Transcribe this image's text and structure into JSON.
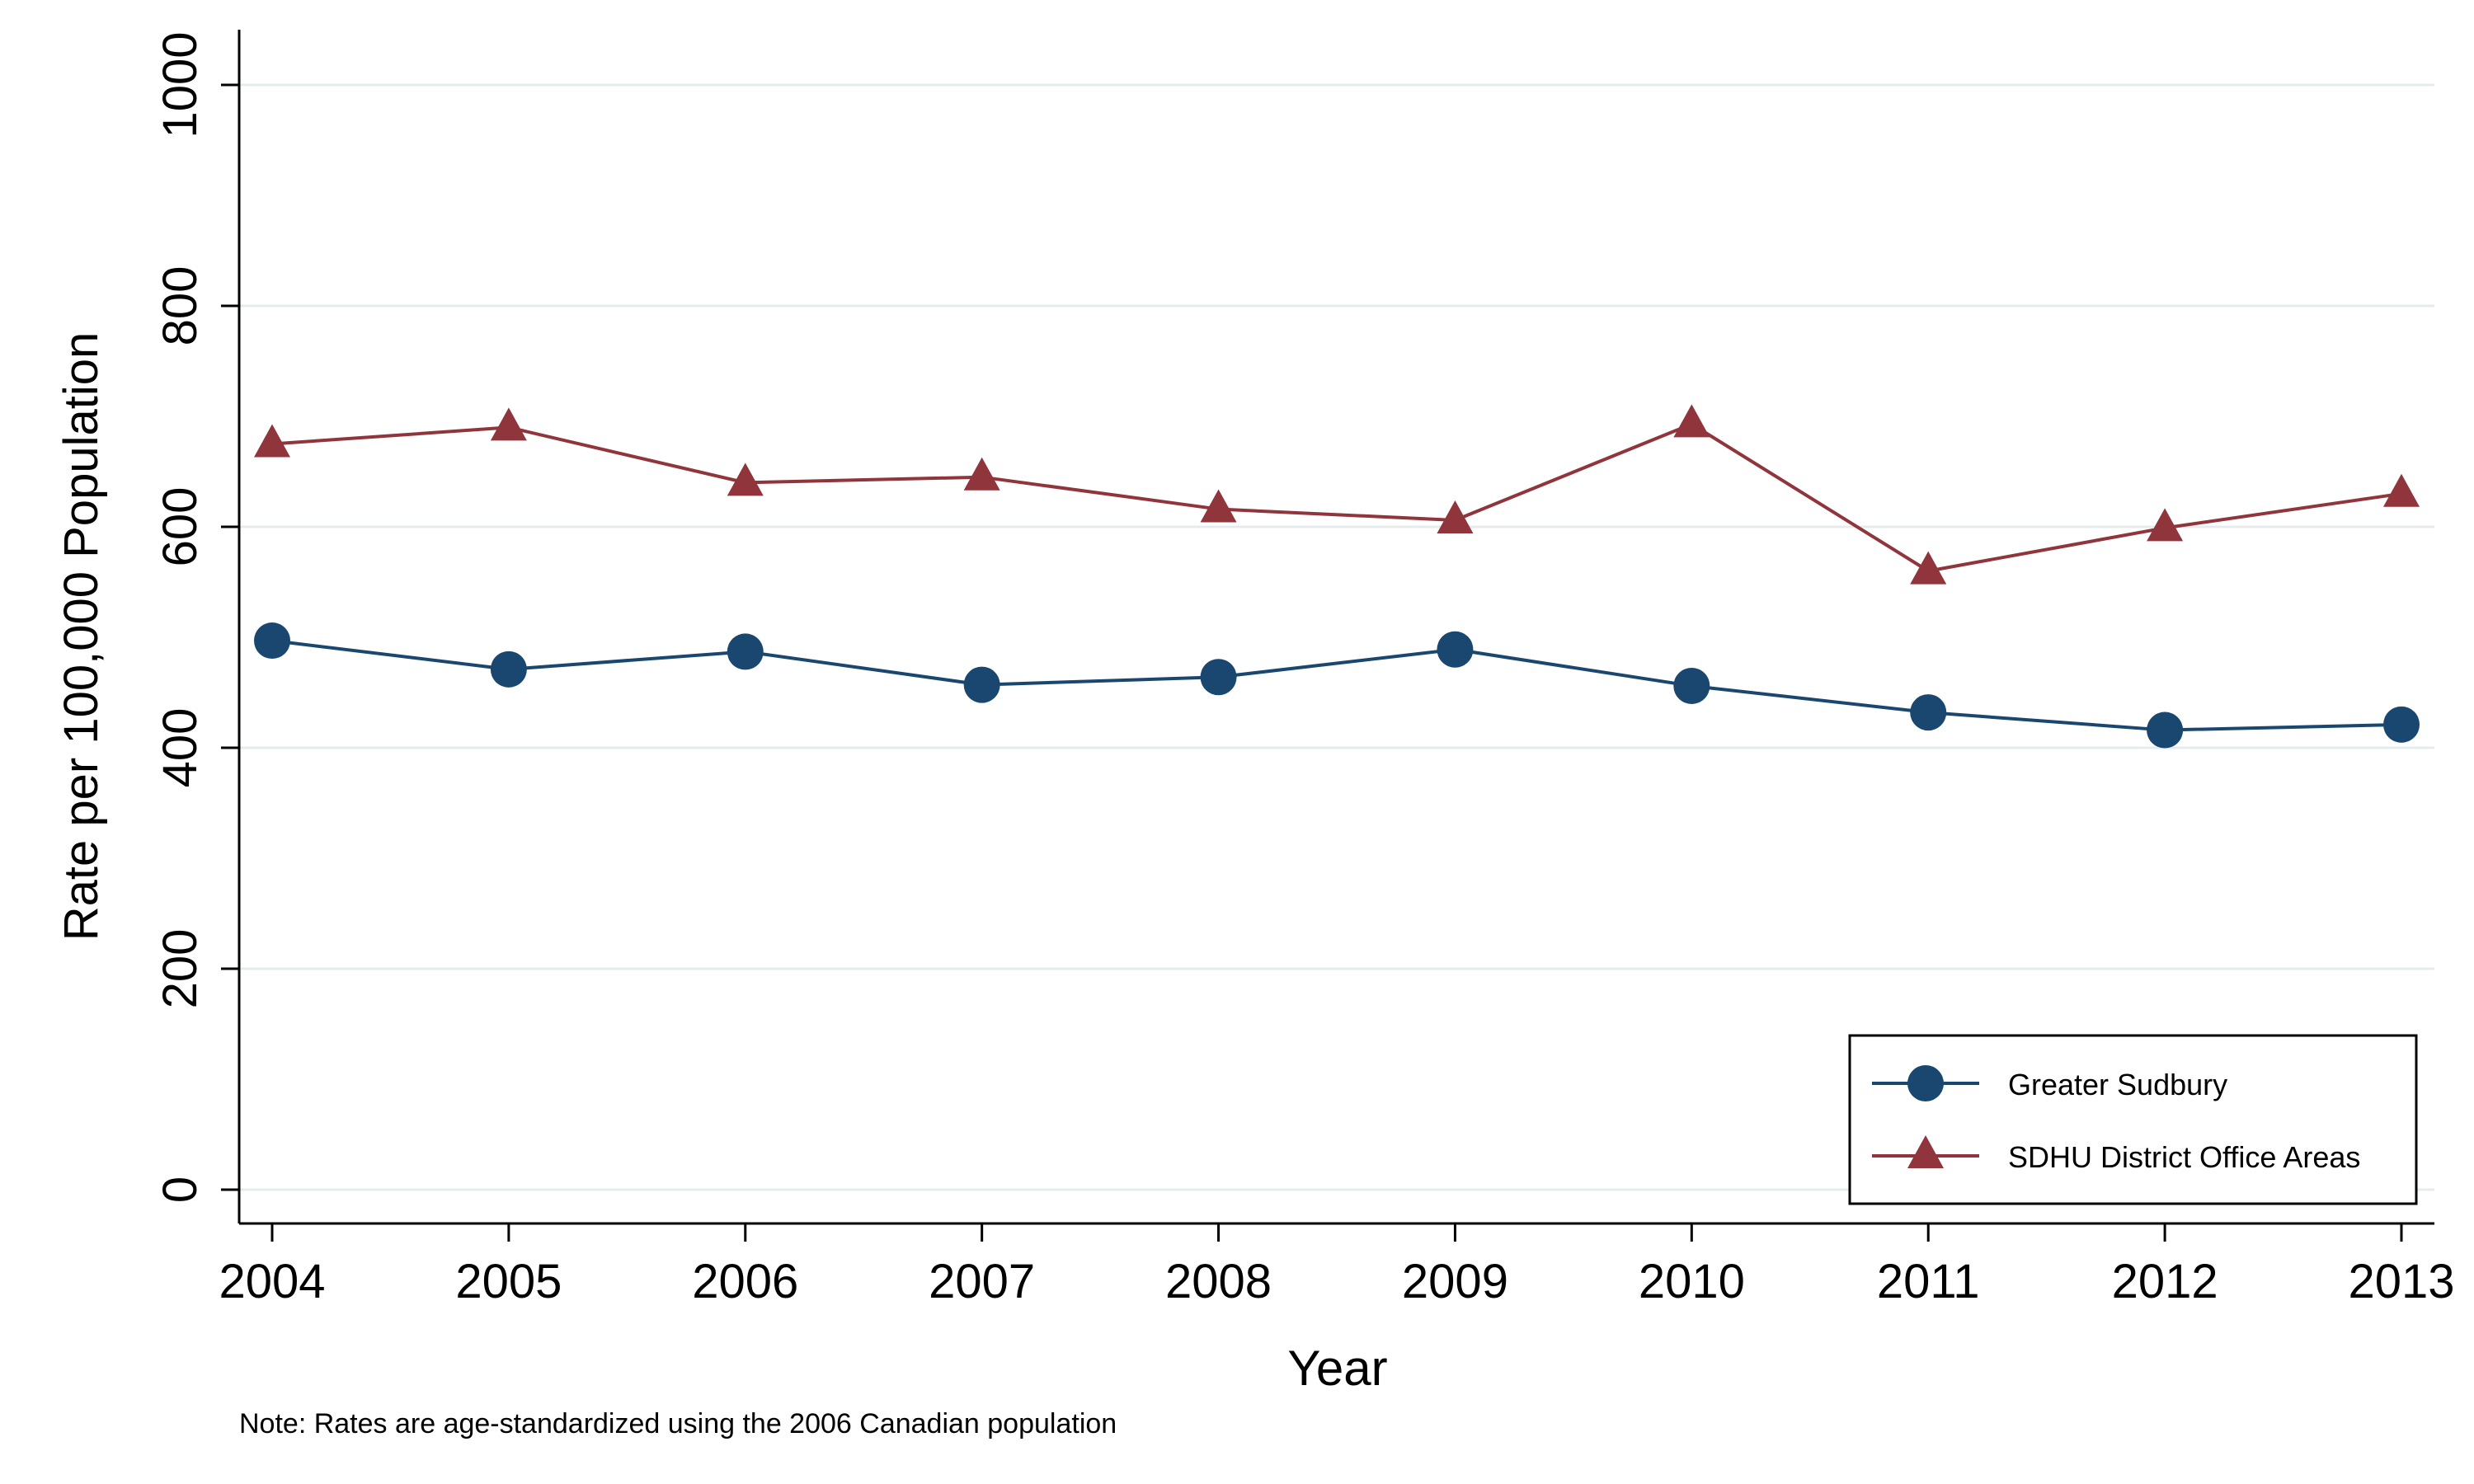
{
  "chart_data": {
    "type": "line",
    "title": "",
    "xlabel": "Year",
    "ylabel": "Rate per 100,000 Population",
    "note": "Note: Rates are age-standardized using the 2006 Canadian population",
    "x": [
      2004,
      2005,
      2006,
      2007,
      2008,
      2009,
      2010,
      2011,
      2012,
      2013
    ],
    "xticks": [
      "2004",
      "2005",
      "2006",
      "2007",
      "2008",
      "2009",
      "2010",
      "2011",
      "2012",
      "2013"
    ],
    "ylim": [
      0,
      1000
    ],
    "yticks": [
      "0",
      "200",
      "400",
      "600",
      "800",
      "1000"
    ],
    "grid": "horizontal",
    "legend_position": "bottom-right",
    "series": [
      {
        "name": "Greater Sudbury",
        "marker": "circle",
        "color": "#1a476f",
        "values": [
          497,
          471,
          487,
          457,
          464,
          489,
          456,
          432,
          416,
          421
        ]
      },
      {
        "name": "SDHU District Office Areas",
        "marker": "triangle",
        "color": "#90353b",
        "values": [
          675,
          690,
          640,
          645,
          616,
          606,
          693,
          560,
          599,
          630
        ]
      }
    ]
  }
}
